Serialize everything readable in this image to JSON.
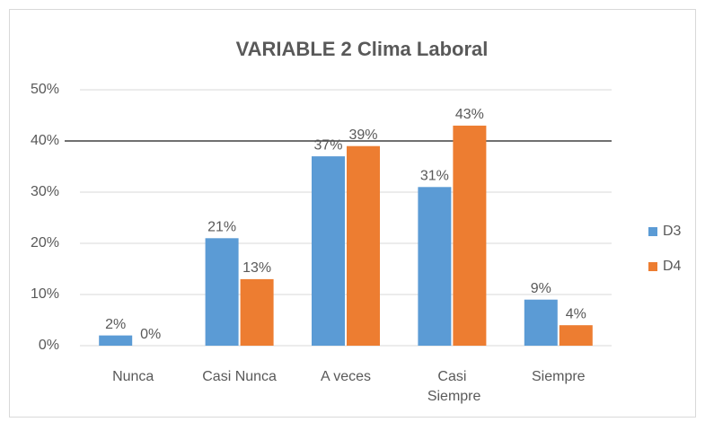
{
  "chart_data": {
    "type": "bar",
    "title": "VARIABLE 2 Clima Laboral",
    "categories": [
      "Nunca",
      "Casi Nunca",
      "A veces",
      "Casi Siempre",
      "Siempre"
    ],
    "series": [
      {
        "name": "D3",
        "color": "#5b9bd5",
        "values": [
          2,
          21,
          37,
          31,
          9
        ],
        "value_labels": [
          "2%",
          "21%",
          "37%",
          "31%",
          "9%"
        ]
      },
      {
        "name": "D4",
        "color": "#ed7d31",
        "values": [
          0,
          13,
          39,
          43,
          4
        ],
        "value_labels": [
          "0%",
          "13%",
          "39%",
          "43%",
          "4%"
        ]
      }
    ],
    "ylim": [
      0,
      50
    ],
    "yticks": [
      {
        "value": 0,
        "label": "0%"
      },
      {
        "value": 10,
        "label": "10%"
      },
      {
        "value": 20,
        "label": "20%"
      },
      {
        "value": 30,
        "label": "30%"
      },
      {
        "value": 40,
        "label": "40%"
      },
      {
        "value": 50,
        "label": "50%"
      }
    ],
    "grid": true,
    "legend": "right",
    "reference_line": 40
  }
}
